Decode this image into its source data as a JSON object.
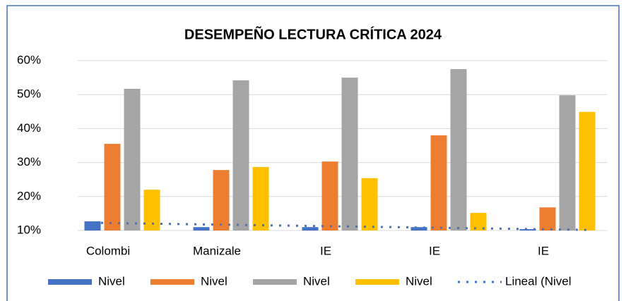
{
  "chart_data": {
    "type": "bar",
    "title": "DESEMPEÑO LECTURA CRÍTICA 2024",
    "categories": [
      "Colombi",
      "Manizale",
      "IE",
      "IE",
      "IE"
    ],
    "series": [
      {
        "name": "Nivel",
        "color": "#4472c4",
        "values": [
          12.7,
          11.0,
          11.0,
          11.0,
          10.4
        ]
      },
      {
        "name": "Nivel",
        "color": "#ed7d31",
        "values": [
          35.5,
          27.8,
          30.3,
          38.0,
          16.8
        ]
      },
      {
        "name": "Nivel",
        "color": "#a5a5a5",
        "values": [
          51.7,
          54.2,
          55.0,
          57.5,
          49.8
        ]
      },
      {
        "name": "Nivel",
        "color": "#ffc000",
        "values": [
          22.0,
          28.7,
          25.4,
          15.2,
          44.9
        ]
      }
    ],
    "trendline": {
      "name": "Lineal (Nivel",
      "color": "#4472c4",
      "series": 0
    },
    "ylim": [
      10,
      60
    ],
    "yticks": [
      {
        "value": 10,
        "label": "10%"
      },
      {
        "value": 20,
        "label": "20%"
      },
      {
        "value": 30,
        "label": "30%"
      },
      {
        "value": 40,
        "label": "40%"
      },
      {
        "value": 50,
        "label": "50%"
      },
      {
        "value": 60,
        "label": "60%"
      }
    ],
    "grid": true,
    "legend": "bottom"
  }
}
